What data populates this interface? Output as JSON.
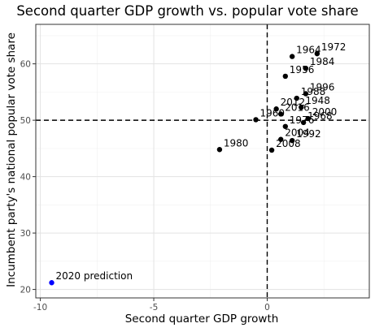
{
  "chart_data": {
    "type": "scatter",
    "title": "Second quarter GDP growth vs. popular vote share",
    "xlabel": "Second quarter GDP growth",
    "ylabel": "Incumbent party's national popular vote share",
    "xlim": [
      -10.2,
      4.5
    ],
    "ylim": [
      18.5,
      67
    ],
    "x_ticks": [
      -10,
      -5,
      0
    ],
    "x_tick_labels": [
      "-10",
      "-5",
      "0"
    ],
    "y_ticks": [
      20,
      30,
      40,
      50,
      60
    ],
    "y_tick_labels": [
      "20",
      "30",
      "40",
      "50",
      "60"
    ],
    "grid": true,
    "reference_lines": {
      "x": 0,
      "y": 50,
      "style": "dashed"
    },
    "series": [
      {
        "color": "#000000",
        "points": [
          {
            "label": "1972",
            "x": 2.2,
            "y": 61.8
          },
          {
            "label": "1964",
            "x": 1.1,
            "y": 61.3
          },
          {
            "label": "1984",
            "x": 1.7,
            "y": 59.2
          },
          {
            "label": "1956",
            "x": 0.8,
            "y": 57.8
          },
          {
            "label": "1996",
            "x": 1.7,
            "y": 54.7
          },
          {
            "label": "1988",
            "x": 1.3,
            "y": 53.9
          },
          {
            "label": "2012",
            "x": 0.4,
            "y": 52.0
          },
          {
            "label": "1948",
            "x": 1.5,
            "y": 52.3
          },
          {
            "label": "2016",
            "x": 0.6,
            "y": 51.1
          },
          {
            "label": "1960",
            "x": -0.5,
            "y": 50.1
          },
          {
            "label": "2000",
            "x": 1.8,
            "y": 50.3
          },
          {
            "label": "1968",
            "x": 1.6,
            "y": 49.6
          },
          {
            "label": "1976",
            "x": 0.8,
            "y": 48.9
          },
          {
            "label": "2004",
            "x": 0.6,
            "y": 46.6
          },
          {
            "label": "1992",
            "x": 1.1,
            "y": 46.4
          },
          {
            "label": "2008",
            "x": 0.2,
            "y": 44.7
          },
          {
            "label": "1980",
            "x": -2.1,
            "y": 44.8
          }
        ]
      },
      {
        "color": "#0000ff",
        "points": [
          {
            "label": "2020 prediction",
            "x": -9.5,
            "y": 21.2
          }
        ]
      }
    ]
  }
}
